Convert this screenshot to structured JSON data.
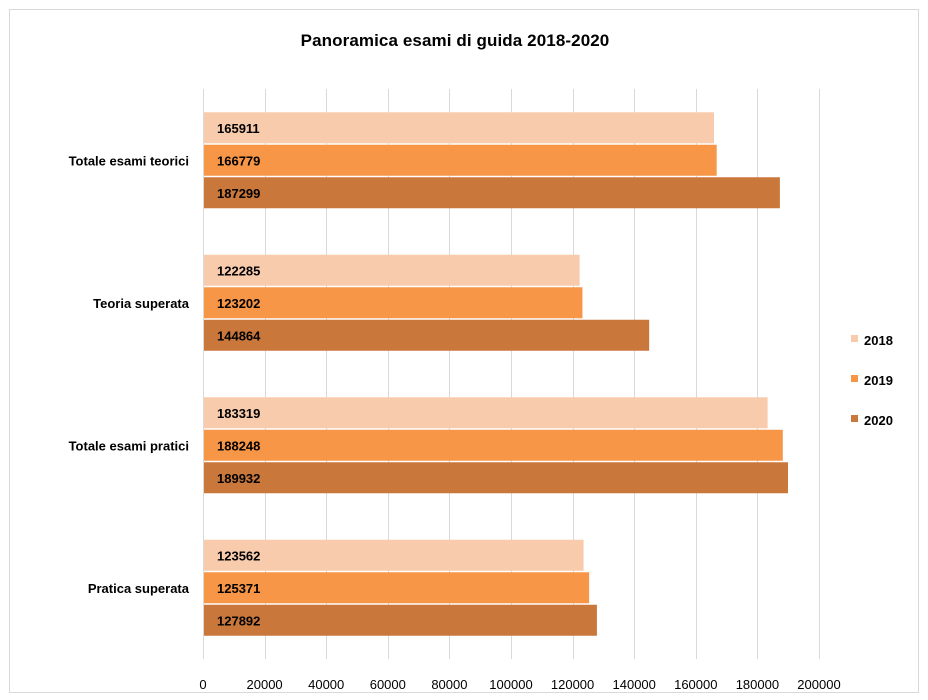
{
  "chart_data": {
    "type": "bar",
    "orientation": "horizontal",
    "title": "Panoramica  esami di guida 2018-2020",
    "categories": [
      "Totale esami teorici",
      "Teoria superata",
      "Totale esami pratici",
      "Pratica superata"
    ],
    "series": [
      {
        "name": "2018",
        "color": "#f8cbad",
        "values": [
          165911,
          122285,
          183319,
          123562
        ]
      },
      {
        "name": "2019",
        "color": "#f79646",
        "values": [
          166779,
          123202,
          188248,
          125371
        ]
      },
      {
        "name": "2020",
        "color": "#c9773b",
        "values": [
          187299,
          144864,
          189932,
          127892
        ]
      }
    ],
    "xlim": [
      0,
      200000
    ],
    "x_ticks": [
      0,
      20000,
      40000,
      60000,
      80000,
      100000,
      120000,
      140000,
      160000,
      180000,
      200000
    ],
    "x_tick_labels": [
      "0",
      "20000",
      "40000",
      "60000",
      "80000",
      "100000",
      "120000",
      "140000",
      "160000",
      "180000",
      "200000"
    ],
    "grid": true,
    "legend_position": "right",
    "data_labels": "inside-base"
  }
}
